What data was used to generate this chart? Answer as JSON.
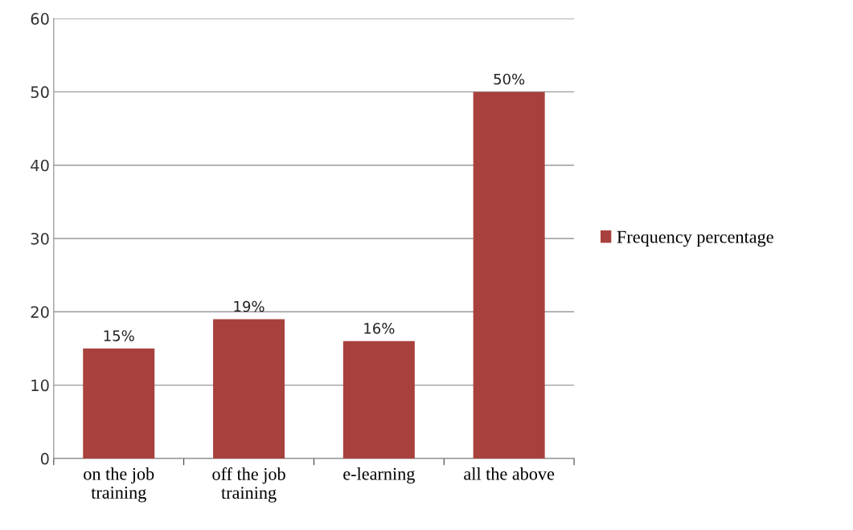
{
  "chart_data": {
    "type": "bar",
    "categories": [
      "on the job\ntraining",
      "off the job\ntraining",
      "e-learning",
      "all the above"
    ],
    "series": [
      {
        "name": "Frequency percentage",
        "color": "#a8413d",
        "values": [
          15,
          19,
          16,
          50
        ],
        "value_labels": [
          "15%",
          "19%",
          "16%",
          "50%"
        ]
      }
    ],
    "ylim": [
      0,
      60
    ],
    "yticks": [
      0,
      10,
      20,
      30,
      40,
      50,
      60
    ],
    "grid": "y",
    "legend": "right"
  }
}
